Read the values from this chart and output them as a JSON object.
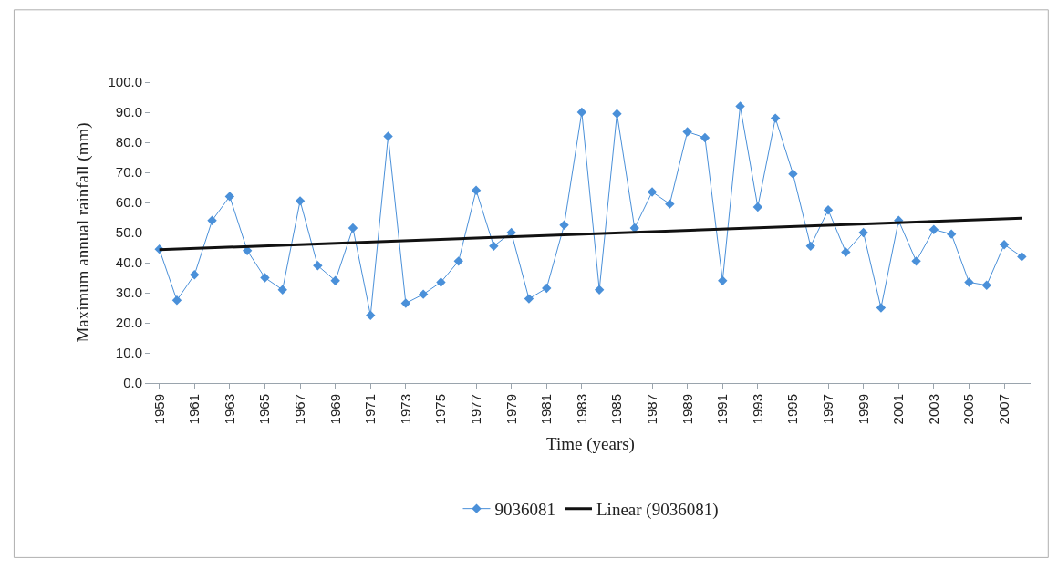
{
  "chart_data": {
    "type": "line",
    "xlabel": "Time (years)",
    "ylabel": "Maximum annual rainfall (mm)",
    "x": [
      1959,
      1960,
      1961,
      1962,
      1963,
      1964,
      1965,
      1966,
      1967,
      1968,
      1969,
      1970,
      1971,
      1972,
      1973,
      1974,
      1975,
      1976,
      1977,
      1978,
      1979,
      1980,
      1981,
      1982,
      1983,
      1984,
      1985,
      1986,
      1987,
      1988,
      1989,
      1990,
      1991,
      1992,
      1993,
      1994,
      1995,
      1996,
      1997,
      1998,
      1999,
      2000,
      2001,
      2002,
      2003,
      2004,
      2005,
      2006,
      2007,
      2008
    ],
    "series": [
      {
        "name": "9036081",
        "color": "#4a90d9",
        "marker": "diamond",
        "values": [
          44.5,
          27.5,
          36,
          54,
          62,
          44,
          35,
          31,
          60.5,
          39,
          34,
          51.5,
          22.5,
          82,
          26.5,
          29.5,
          33.5,
          40.5,
          64,
          45.5,
          50,
          28,
          31.5,
          52.5,
          90,
          31,
          89.5,
          51.5,
          63.5,
          59.5,
          83.5,
          81.5,
          34,
          92,
          58.5,
          88,
          69.5,
          45.5,
          57.5,
          43.5,
          50,
          25,
          54,
          40.5,
          51,
          49.5,
          33.5,
          32.5,
          46,
          42
        ]
      },
      {
        "name": "Linear (9036081)",
        "color": "#111111",
        "marker": "none",
        "x": [
          1959,
          2008
        ],
        "values": [
          44.3,
          54.8
        ]
      }
    ],
    "xlim": [
      1958.5,
      2008.5
    ],
    "xticks": [
      1959,
      1961,
      1963,
      1965,
      1967,
      1969,
      1971,
      1973,
      1975,
      1977,
      1979,
      1981,
      1983,
      1985,
      1987,
      1989,
      1991,
      1993,
      1995,
      1997,
      1999,
      2001,
      2003,
      2005,
      2007
    ],
    "ylim": [
      0,
      100
    ],
    "yticks": [
      {
        "value": 0,
        "label": "0.0"
      },
      {
        "value": 10,
        "label": "10.0"
      },
      {
        "value": 20,
        "label": "20.0"
      },
      {
        "value": 30,
        "label": "30.0"
      },
      {
        "value": 40,
        "label": "40.0"
      },
      {
        "value": 50,
        "label": "50.0"
      },
      {
        "value": 60,
        "label": "60.0"
      },
      {
        "value": 70,
        "label": "70.0"
      },
      {
        "value": 80,
        "label": "80.0"
      },
      {
        "value": 90,
        "label": "90.0"
      },
      {
        "value": 100,
        "label": "100.0"
      }
    ],
    "legend": "bottom",
    "line_style": "solid"
  }
}
